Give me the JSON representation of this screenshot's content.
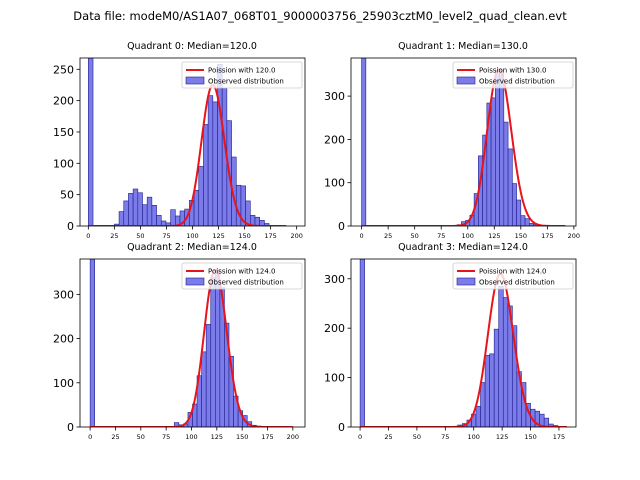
{
  "suptitle": "Data file: modeM0/AS1A07_068T01_9000003756_25903cztM0_level2_quad_clean.evt",
  "colors": {
    "bar_fill": "#7b7bea",
    "bar_edge": "#1f1f8c",
    "poisson": "#e8141a"
  },
  "chart_data": [
    {
      "type": "bar",
      "title": "Quadrant 0: Median=120.0",
      "xlim": [
        -8,
        208
      ],
      "ylim": [
        0,
        268
      ],
      "xticks": [
        0,
        25,
        50,
        75,
        100,
        125,
        150,
        175,
        200
      ],
      "yticks": [
        0,
        50,
        100,
        150,
        200,
        250
      ],
      "bin_width": 4.5,
      "bins": [
        {
          "x": 0,
          "y": 268
        },
        {
          "x": 25,
          "y": 3
        },
        {
          "x": 29.5,
          "y": 23
        },
        {
          "x": 34,
          "y": 40
        },
        {
          "x": 38.5,
          "y": 52
        },
        {
          "x": 43,
          "y": 59
        },
        {
          "x": 47.5,
          "y": 53
        },
        {
          "x": 52,
          "y": 34
        },
        {
          "x": 56.5,
          "y": 46
        },
        {
          "x": 61,
          "y": 33
        },
        {
          "x": 65.5,
          "y": 17
        },
        {
          "x": 70,
          "y": 8
        },
        {
          "x": 74.5,
          "y": 5
        },
        {
          "x": 79,
          "y": 26
        },
        {
          "x": 83.5,
          "y": 16
        },
        {
          "x": 88,
          "y": 24
        },
        {
          "x": 92.5,
          "y": 27
        },
        {
          "x": 97,
          "y": 41
        },
        {
          "x": 101.5,
          "y": 57
        },
        {
          "x": 106,
          "y": 95
        },
        {
          "x": 110.5,
          "y": 162
        },
        {
          "x": 115,
          "y": 208
        },
        {
          "x": 119.5,
          "y": 198
        },
        {
          "x": 124,
          "y": 258
        },
        {
          "x": 128.5,
          "y": 220
        },
        {
          "x": 133,
          "y": 168
        },
        {
          "x": 137.5,
          "y": 110
        },
        {
          "x": 142,
          "y": 65
        },
        {
          "x": 146.5,
          "y": 64
        },
        {
          "x": 151,
          "y": 40
        },
        {
          "x": 155.5,
          "y": 17
        },
        {
          "x": 160,
          "y": 14
        },
        {
          "x": 164.5,
          "y": 9
        },
        {
          "x": 169,
          "y": 4
        }
      ],
      "poisson_mean": 120.0,
      "poisson_scale": 225,
      "poisson_range": [
        0,
        190
      ],
      "legend": [
        "Poission with 120.0",
        "Observed distribution"
      ]
    },
    {
      "type": "bar",
      "title": "Quadrant 1: Median=130.0",
      "xlim": [
        -10,
        202
      ],
      "ylim": [
        0,
        388
      ],
      "xticks": [
        0,
        25,
        50,
        75,
        100,
        125,
        150,
        175,
        200
      ],
      "yticks": [
        0,
        100,
        200,
        300
      ],
      "bin_width": 4,
      "bins": [
        {
          "x": 0,
          "y": 388
        },
        {
          "x": 90,
          "y": 3
        },
        {
          "x": 94,
          "y": 10
        },
        {
          "x": 98,
          "y": 13
        },
        {
          "x": 102,
          "y": 25
        },
        {
          "x": 106,
          "y": 75
        },
        {
          "x": 110,
          "y": 162
        },
        {
          "x": 114,
          "y": 210
        },
        {
          "x": 118,
          "y": 284
        },
        {
          "x": 122,
          "y": 296
        },
        {
          "x": 126,
          "y": 360
        },
        {
          "x": 130,
          "y": 360
        },
        {
          "x": 134,
          "y": 240
        },
        {
          "x": 138,
          "y": 178
        },
        {
          "x": 142,
          "y": 98
        },
        {
          "x": 146,
          "y": 60
        },
        {
          "x": 150,
          "y": 24
        },
        {
          "x": 154,
          "y": 17
        },
        {
          "x": 158,
          "y": 6
        },
        {
          "x": 162,
          "y": 3
        }
      ],
      "poisson_mean": 130.0,
      "poisson_scale": 362,
      "poisson_range": [
        0,
        192
      ],
      "legend": [
        "Poission with 130.0",
        "Observed distribution"
      ]
    },
    {
      "type": "bar",
      "title": "Quadrant 2: Median=124.0",
      "xlim": [
        -10,
        212
      ],
      "ylim": [
        0,
        380
      ],
      "xticks": [
        0,
        25,
        50,
        75,
        100,
        125,
        150,
        175,
        200
      ],
      "yticks": [
        0,
        100,
        200,
        300
      ],
      "bin_width": 4.5,
      "bins": [
        {
          "x": 0,
          "y": 380
        },
        {
          "x": 83,
          "y": 10
        },
        {
          "x": 87.5,
          "y": 5
        },
        {
          "x": 92,
          "y": 7
        },
        {
          "x": 96.5,
          "y": 33
        },
        {
          "x": 101,
          "y": 52
        },
        {
          "x": 105.5,
          "y": 116
        },
        {
          "x": 110,
          "y": 170
        },
        {
          "x": 114.5,
          "y": 232
        },
        {
          "x": 119,
          "y": 338
        },
        {
          "x": 123.5,
          "y": 355
        },
        {
          "x": 128,
          "y": 315
        },
        {
          "x": 132.5,
          "y": 235
        },
        {
          "x": 137,
          "y": 160
        },
        {
          "x": 141.5,
          "y": 70
        },
        {
          "x": 146,
          "y": 37
        },
        {
          "x": 150.5,
          "y": 26
        },
        {
          "x": 155,
          "y": 12
        },
        {
          "x": 159.5,
          "y": 4
        },
        {
          "x": 164,
          "y": 2
        }
      ],
      "poisson_mean": 124.0,
      "poisson_scale": 355,
      "poisson_range": [
        0,
        200
      ],
      "legend": [
        "Poission with 124.0",
        "Observed distribution"
      ]
    },
    {
      "type": "bar",
      "title": "Quadrant 3: Median=124.0",
      "xlim": [
        -8,
        190
      ],
      "ylim": [
        0,
        340
      ],
      "xticks": [
        0,
        25,
        50,
        75,
        100,
        125,
        150,
        175
      ],
      "yticks": [
        0,
        100,
        200,
        300
      ],
      "bin_width": 4,
      "bins": [
        {
          "x": 0,
          "y": 340
        },
        {
          "x": 86,
          "y": 4
        },
        {
          "x": 90,
          "y": 7
        },
        {
          "x": 94,
          "y": 14
        },
        {
          "x": 98,
          "y": 26
        },
        {
          "x": 102,
          "y": 42
        },
        {
          "x": 106,
          "y": 90
        },
        {
          "x": 110,
          "y": 145
        },
        {
          "x": 114,
          "y": 148
        },
        {
          "x": 118,
          "y": 198
        },
        {
          "x": 122,
          "y": 285
        },
        {
          "x": 126,
          "y": 262
        },
        {
          "x": 130,
          "y": 245
        },
        {
          "x": 134,
          "y": 205
        },
        {
          "x": 138,
          "y": 112
        },
        {
          "x": 142,
          "y": 90
        },
        {
          "x": 146,
          "y": 48
        },
        {
          "x": 150,
          "y": 36
        },
        {
          "x": 154,
          "y": 32
        },
        {
          "x": 158,
          "y": 26
        },
        {
          "x": 162,
          "y": 18
        },
        {
          "x": 166,
          "y": 6
        },
        {
          "x": 170,
          "y": 3
        }
      ],
      "poisson_mean": 124.0,
      "poisson_scale": 310,
      "poisson_range": [
        0,
        182
      ],
      "legend": [
        "Poission with 124.0",
        "Observed distribution"
      ]
    }
  ]
}
